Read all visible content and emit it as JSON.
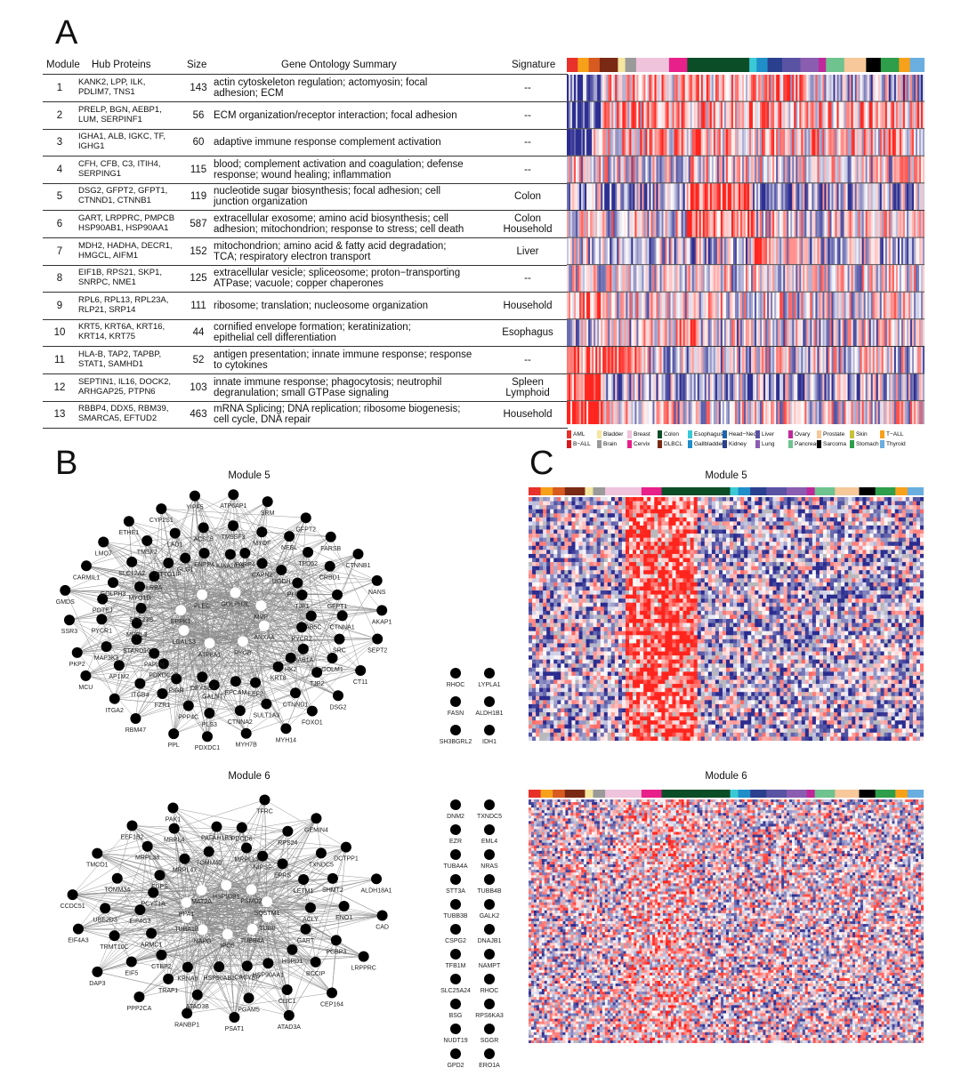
{
  "panels": {
    "a": "A",
    "b": "B",
    "c": "C"
  },
  "table": {
    "headers": {
      "module": "Module",
      "hub": "Hub Proteins",
      "size": "Size",
      "go": "Gene Ontology Summary",
      "signature": "Signature"
    },
    "rows": [
      {
        "module": "1",
        "hub": [
          "KANK2, LPP, ILK,",
          "PDLIM7, TNS1"
        ],
        "size": "143",
        "go": [
          "actin cytoskeleton regulation; actomyosin; focal",
          "adhesion; ECM"
        ],
        "signature": [
          "--"
        ]
      },
      {
        "module": "2",
        "hub": [
          "PRELP, BGN, AEBP1,",
          "LUM, SERPINF1"
        ],
        "size": "56",
        "go": [
          "ECM organization/receptor interaction; focal adhesion"
        ],
        "signature": [
          "--"
        ]
      },
      {
        "module": "3",
        "hub": [
          "IGHA1, ALB, IGKC, TF,",
          "IGHG1"
        ],
        "size": "60",
        "go": [
          "adaptive immune response complement activation"
        ],
        "signature": [
          "--"
        ]
      },
      {
        "module": "4",
        "hub": [
          "CFH, CFB, C3, ITIH4,",
          "SERPING1"
        ],
        "size": "115",
        "go": [
          "blood; complement activation and coagulation; defense",
          "response; wound healing; inflammation"
        ],
        "signature": [
          "--"
        ]
      },
      {
        "module": "5",
        "hub": [
          "DSG2, GFPT2, GFPT1,",
          "CTNND1, CTNNB1"
        ],
        "size": "119",
        "go": [
          "nucleotide sugar biosynthesis; focal adhesion; cell",
          "junction organization"
        ],
        "signature": [
          "Colon"
        ]
      },
      {
        "module": "6",
        "hub": [
          "GART, LRPPRC, PMPCB",
          "HSP90AB1, HSP90AA1"
        ],
        "size": "587",
        "go": [
          "extracellular exosome; amino acid biosynthesis; cell",
          "adhesion; mitochondrion; response to stress; cell death"
        ],
        "signature": [
          "Colon",
          "Household"
        ]
      },
      {
        "module": "7",
        "hub": [
          "MDH2, HADHA, DECR1,",
          "HMGCL, AIFM1"
        ],
        "size": "152",
        "go": [
          "mitochondrion; amino acid &   fatty acid degradation;",
          "TCA; respiratory electron transport"
        ],
        "signature": [
          "Liver"
        ]
      },
      {
        "module": "8",
        "hub": [
          "EIF1B, RPS21, SKP1,",
          "SNRPC, NME1"
        ],
        "size": "125",
        "go": [
          "extracellular vesicle; spliceosome; proton−transporting",
          "ATPase; vacuole; copper chaperones"
        ],
        "signature": [
          "--"
        ]
      },
      {
        "module": "9",
        "hub": [
          "RPL6, RPL13, RPL23A,",
          "RLP21, SRP14"
        ],
        "size": "111",
        "go": [
          "ribosome; translation; nucleosome organization"
        ],
        "signature": [
          "Household"
        ]
      },
      {
        "module": "10",
        "hub": [
          "KRT5, KRT6A, KRT16,",
          "KRT14, KRT75"
        ],
        "size": "44",
        "go": [
          "cornified envelope formation; keratinization;",
          "epithelial cell differentiation"
        ],
        "signature": [
          "Esophagus"
        ]
      },
      {
        "module": "11",
        "hub": [
          "HLA-B, TAP2, TAPBP,",
          "STAT1, SAMHD1"
        ],
        "size": "52",
        "go": [
          "antigen presentation; innate immune response; response",
          "to cytokines"
        ],
        "signature": [
          "--"
        ]
      },
      {
        "module": "12",
        "hub": [
          "SEPTIN1, IL16, DOCK2,",
          "ARHGAP25, PTPN6"
        ],
        "size": "103",
        "go": [
          "innate immune response; phagocytosis; neutrophil",
          "degranulation; small GTPase signaling"
        ],
        "signature": [
          "Spleen",
          "Lymphoid"
        ]
      },
      {
        "module": "13",
        "hub": [
          "RBBP4, DDX5, RBM39,",
          "SMARCA5, EFTUD2"
        ],
        "size": "463",
        "go": [
          "mRNA Splicing; DNA replication; ribosome biogenesis;",
          "cell cycle, DNA repair"
        ],
        "signature": [
          "Household"
        ]
      }
    ]
  },
  "legend": [
    {
      "label": "AML",
      "color": "#e8312a"
    },
    {
      "label": "B−ALL",
      "color": "#d7191c"
    },
    {
      "label": "Bladder",
      "color": "#f5e6a0"
    },
    {
      "label": "Brain",
      "color": "#9a9a9a"
    },
    {
      "label": "Breast",
      "color": "#efc3dc"
    },
    {
      "label": "Cervix",
      "color": "#e7208a"
    },
    {
      "label": "Colon",
      "color": "#0b4d26"
    },
    {
      "label": "DLBCL",
      "color": "#7a2a14"
    },
    {
      "label": "Esophagus",
      "color": "#3ac9d6"
    },
    {
      "label": "Gallbladder",
      "color": "#1f8ec9"
    },
    {
      "label": "Head−Neck",
      "color": "#1f63b0"
    },
    {
      "label": "Kidney",
      "color": "#2b3f8f"
    },
    {
      "label": "Liver",
      "color": "#5a52a3"
    },
    {
      "label": "Lung",
      "color": "#8a5db0"
    },
    {
      "label": "Ovary",
      "color": "#c0279a"
    },
    {
      "label": "Pancreas",
      "color": "#6fc38f"
    },
    {
      "label": "Prostate",
      "color": "#f6c89a"
    },
    {
      "label": "Sarcoma",
      "color": "#000000"
    },
    {
      "label": "Skin",
      "color": "#c8c23a"
    },
    {
      "label": "Stomach",
      "color": "#2e9e4a"
    },
    {
      "label": "T−ALL",
      "color": "#f7a11a"
    },
    {
      "label": "Thyroid",
      "color": "#6aaee0"
    }
  ],
  "heatmap_a": {
    "rows": 13,
    "colors": {
      "high": "#e8241d",
      "mid": "#ffffff",
      "low": "#2b2c8f"
    }
  },
  "module5": {
    "title": "Module 5",
    "heat_title": "Module 5",
    "nodes": [
      "ANXA4",
      "PYGB",
      "ATP8A1",
      "LGALS3",
      "EPPK1",
      "PLEC",
      "GOLPH3L",
      "MVP",
      "PARP4",
      "ATP6AP1",
      "MYOF",
      "CAPN2",
      "SRM",
      "NEBL",
      "UGDH",
      "GFPT2",
      "TPD52",
      "PLOD3",
      "FARSB",
      "CRBD1",
      "TJP1",
      "CTNNB1",
      "GFPT1",
      "RAB5C",
      "NANS",
      "CTNNA1",
      "PYCR2",
      "AKAP1",
      "SRC",
      "RAB1A",
      "SEPT2",
      "GOLM1",
      "HK2",
      "CT11",
      "TJP2",
      "KRT8",
      "DSG2",
      "CTNND1",
      "EEF2",
      "FOXO1",
      "SULT1A3",
      "EPCAM",
      "MYH14",
      "CTNNA2",
      "GALNT7",
      "MYH7B",
      "PLS3",
      "DPYSL2",
      "PDXDC1",
      "PPP4C",
      "PIGR",
      "PPL",
      "FZR1",
      "PDXDC2P",
      "RBM47",
      "ITGB4",
      "PAPLN",
      "ITGA2",
      "AP1M2",
      "STARD10",
      "MCU",
      "MAP3K3",
      "MRPL3",
      "PKP2",
      "PYCR1",
      "SEC23B",
      "SSR3",
      "POTEJ",
      "MYO1D",
      "GMDS",
      "GOLPH3",
      "LRBA",
      "CARMIL1",
      "SLC12A2",
      "PTTG1IP",
      "LMO7",
      "TMSF2",
      "GLG1",
      "ETHE1",
      "LAD1",
      "ENPP4",
      "CYP2S1",
      "ACSL5",
      "KIAA2013",
      "YIPF5",
      "TM9SF3"
    ],
    "isolated": [
      "RHOC",
      "LYPLA1",
      "FASN",
      "ALDH1B1",
      "SH3BGRL2",
      "IDH1"
    ]
  },
  "module6": {
    "title": "Module 6",
    "heat_title": "Module 6",
    "nodes": [
      "TUBB",
      "TUBB4A",
      "IPO5",
      "NAPG",
      "TUBA1B",
      "PPA1",
      "MAT2A",
      "HSP90B1",
      "PSMD2",
      "SQSTM1",
      "PDCD6",
      "NIPSF",
      "TFRC",
      "RPS24",
      "EPRS",
      "GEMIN4",
      "TXNDC5",
      "LETM1",
      "DCTPP1",
      "SHMT2",
      "ACLY",
      "ALDH18A1",
      "ENO1",
      "GART",
      "CAD",
      "PCBP3",
      "HSPD1",
      "LRPPRC",
      "BCCIP",
      "HSP90AA1",
      "CEP164",
      "CLIC1",
      "CACYBP",
      "ATAD3A",
      "PGAM5",
      "HSP90AB1",
      "PSAT1",
      "ATAD3B",
      "KPNA6",
      "RANBP1",
      "TRAF1",
      "CTBP2",
      "PPP2CA",
      "EIF5",
      "ARMC1",
      "DAP3",
      "TRMT10C",
      "EIF4G3",
      "EIF4A3",
      "UBE2D3",
      "PCYT1A",
      "CCDC51",
      "TOMM34",
      "FDPS",
      "TMCO1",
      "MRPL38",
      "MRPL47",
      "EEF1B2",
      "MRPL4",
      "TOMM40",
      "PAK1",
      "PAFAH1B3",
      "MRPL13"
    ],
    "isolated": [
      "DNM2",
      "TXNDC5",
      "EZR",
      "EML4",
      "TUBA4A",
      "NRAS",
      "STT3A",
      "TUBB4B",
      "TUBB3B",
      "GALK2",
      "CSPG2",
      "DNAJB1",
      "TFB1M",
      "NAMPT",
      "SLC25A24",
      "RHOC",
      "BSG",
      "RPS6KA3",
      "NUDT19",
      "SGGR",
      "GPD2",
      "ERO1A"
    ]
  }
}
